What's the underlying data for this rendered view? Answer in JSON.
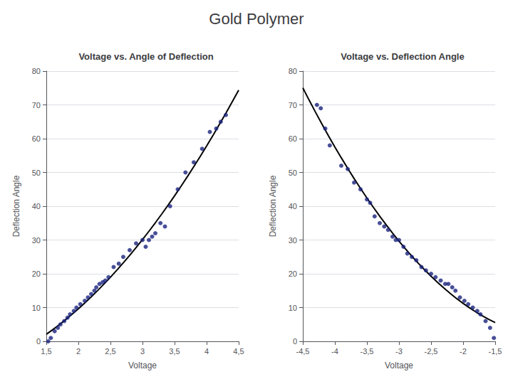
{
  "title": "Gold Polymer",
  "chart_data": [
    {
      "type": "scatter",
      "title": "Voltage vs. Angle of Deflection",
      "x_label": "Voltage",
      "y_label": "Deflection Angle",
      "xlim": [
        1.5,
        4.5
      ],
      "ylim": [
        0,
        80
      ],
      "xticks": [
        {
          "value": 1.5,
          "label": "1,5"
        },
        2,
        {
          "value": 2.5,
          "label": "2,5"
        },
        3,
        {
          "value": 3.5,
          "label": "3,5"
        },
        4,
        {
          "value": 4.5,
          "label": "4,5"
        }
      ],
      "yticks": [
        0,
        10,
        20,
        30,
        40,
        50,
        60,
        70,
        80
      ],
      "grid": "y",
      "series": [
        {
          "type": "scatter",
          "color": "#1a237e",
          "marker": "circle",
          "x": [
            1.53,
            1.57,
            1.63,
            1.68,
            1.72,
            1.78,
            1.83,
            1.87,
            1.93,
            1.97,
            2.03,
            2.1,
            2.15,
            2.2,
            2.25,
            2.28,
            2.33,
            2.38,
            2.42,
            2.47,
            2.55,
            2.63,
            2.7,
            2.8,
            2.9,
            3.0,
            3.05,
            3.1,
            3.15,
            3.2,
            3.28,
            3.35,
            3.43,
            3.55,
            3.67,
            3.8,
            3.93,
            4.05,
            4.15,
            4.22,
            4.3
          ],
          "values": [
            0,
            1,
            3,
            4,
            5,
            6,
            7,
            8,
            9,
            10,
            11,
            12,
            13,
            14,
            15,
            16,
            17,
            17.5,
            18,
            19,
            22,
            23,
            25,
            27,
            29,
            30,
            28,
            30,
            31,
            32,
            35,
            34,
            40,
            45,
            50,
            53,
            57,
            62,
            63,
            65,
            67
          ]
        },
        {
          "type": "line",
          "color": "#000000",
          "line_style": "solid",
          "x": [
            1.5,
            1.6,
            1.7,
            1.8,
            1.9,
            2.0,
            2.1,
            2.2,
            2.3,
            2.4,
            2.5,
            2.6,
            2.7,
            2.8,
            2.9,
            3.0,
            3.1,
            3.2,
            3.3,
            3.4,
            3.5,
            3.6,
            3.7,
            3.8,
            3.9,
            4.0,
            4.1,
            4.2,
            4.3,
            4.4,
            4.5
          ],
          "values": [
            2.08,
            3.45,
            4.89,
            6.4,
            7.98,
            9.63,
            11.36,
            13.16,
            15.03,
            16.97,
            18.98,
            21.07,
            23.23,
            25.46,
            27.76,
            30.13,
            32.58,
            35.1,
            37.69,
            40.35,
            43.08,
            45.89,
            48.77,
            51.72,
            54.74,
            57.83,
            61.0,
            64.24,
            67.55,
            70.93,
            74.38
          ]
        }
      ]
    },
    {
      "type": "scatter",
      "title": "Voltage vs. Deflection Angle",
      "x_label": "Voltage",
      "y_label": "Deflection Angle",
      "xlim": [
        -4.5,
        -1.5
      ],
      "ylim": [
        0,
        80
      ],
      "xticks": [
        {
          "value": -4.5,
          "label": "-4,5"
        },
        -4,
        {
          "value": -3.5,
          "label": "-3,5"
        },
        -3,
        {
          "value": -2.5,
          "label": "-2,5"
        },
        -2,
        {
          "value": -1.5,
          "label": "-1,5"
        }
      ],
      "yticks": [
        0,
        10,
        20,
        30,
        40,
        50,
        60,
        70,
        80
      ],
      "grid": "y",
      "series": [
        {
          "type": "scatter",
          "color": "#1a237e",
          "marker": "circle",
          "x": [
            -4.28,
            -4.22,
            -4.15,
            -4.08,
            -3.9,
            -3.8,
            -3.7,
            -3.6,
            -3.5,
            -3.45,
            -3.38,
            -3.3,
            -3.23,
            -3.17,
            -3.1,
            -3.05,
            -3.0,
            -2.93,
            -2.87,
            -2.8,
            -2.73,
            -2.65,
            -2.58,
            -2.5,
            -2.43,
            -2.35,
            -2.28,
            -2.23,
            -2.17,
            -2.12,
            -2.05,
            -1.98,
            -1.92,
            -1.85,
            -1.78,
            -1.73,
            -1.65,
            -1.58,
            -1.52
          ],
          "values": [
            70,
            69,
            63,
            58,
            52,
            51,
            47,
            45,
            42,
            41,
            37,
            35,
            34,
            33,
            31,
            30,
            30,
            28,
            26,
            25,
            24,
            22,
            21,
            20,
            19,
            18,
            17,
            17,
            16,
            15,
            13,
            12,
            11,
            10,
            9,
            8,
            6,
            4,
            1
          ]
        },
        {
          "type": "line",
          "color": "#000000",
          "line_style": "solid",
          "x": [
            -4.5,
            -4.4,
            -4.3,
            -4.2,
            -4.1,
            -4.0,
            -3.9,
            -3.8,
            -3.7,
            -3.6,
            -3.5,
            -3.4,
            -3.3,
            -3.2,
            -3.1,
            -3.0,
            -2.9,
            -2.8,
            -2.7,
            -2.6,
            -2.5,
            -2.4,
            -2.3,
            -2.2,
            -2.1,
            -2.0,
            -1.9,
            -1.8,
            -1.7,
            -1.6,
            -1.5
          ],
          "values": [
            75.04,
            71.35,
            67.76,
            64.26,
            60.86,
            57.55,
            54.34,
            51.22,
            48.19,
            45.26,
            42.43,
            39.69,
            37.04,
            34.49,
            32.03,
            29.67,
            27.4,
            25.22,
            23.14,
            21.16,
            19.27,
            17.47,
            15.77,
            14.17,
            12.65,
            11.24,
            9.91,
            8.68,
            7.55,
            6.51,
            5.57
          ]
        }
      ]
    }
  ]
}
